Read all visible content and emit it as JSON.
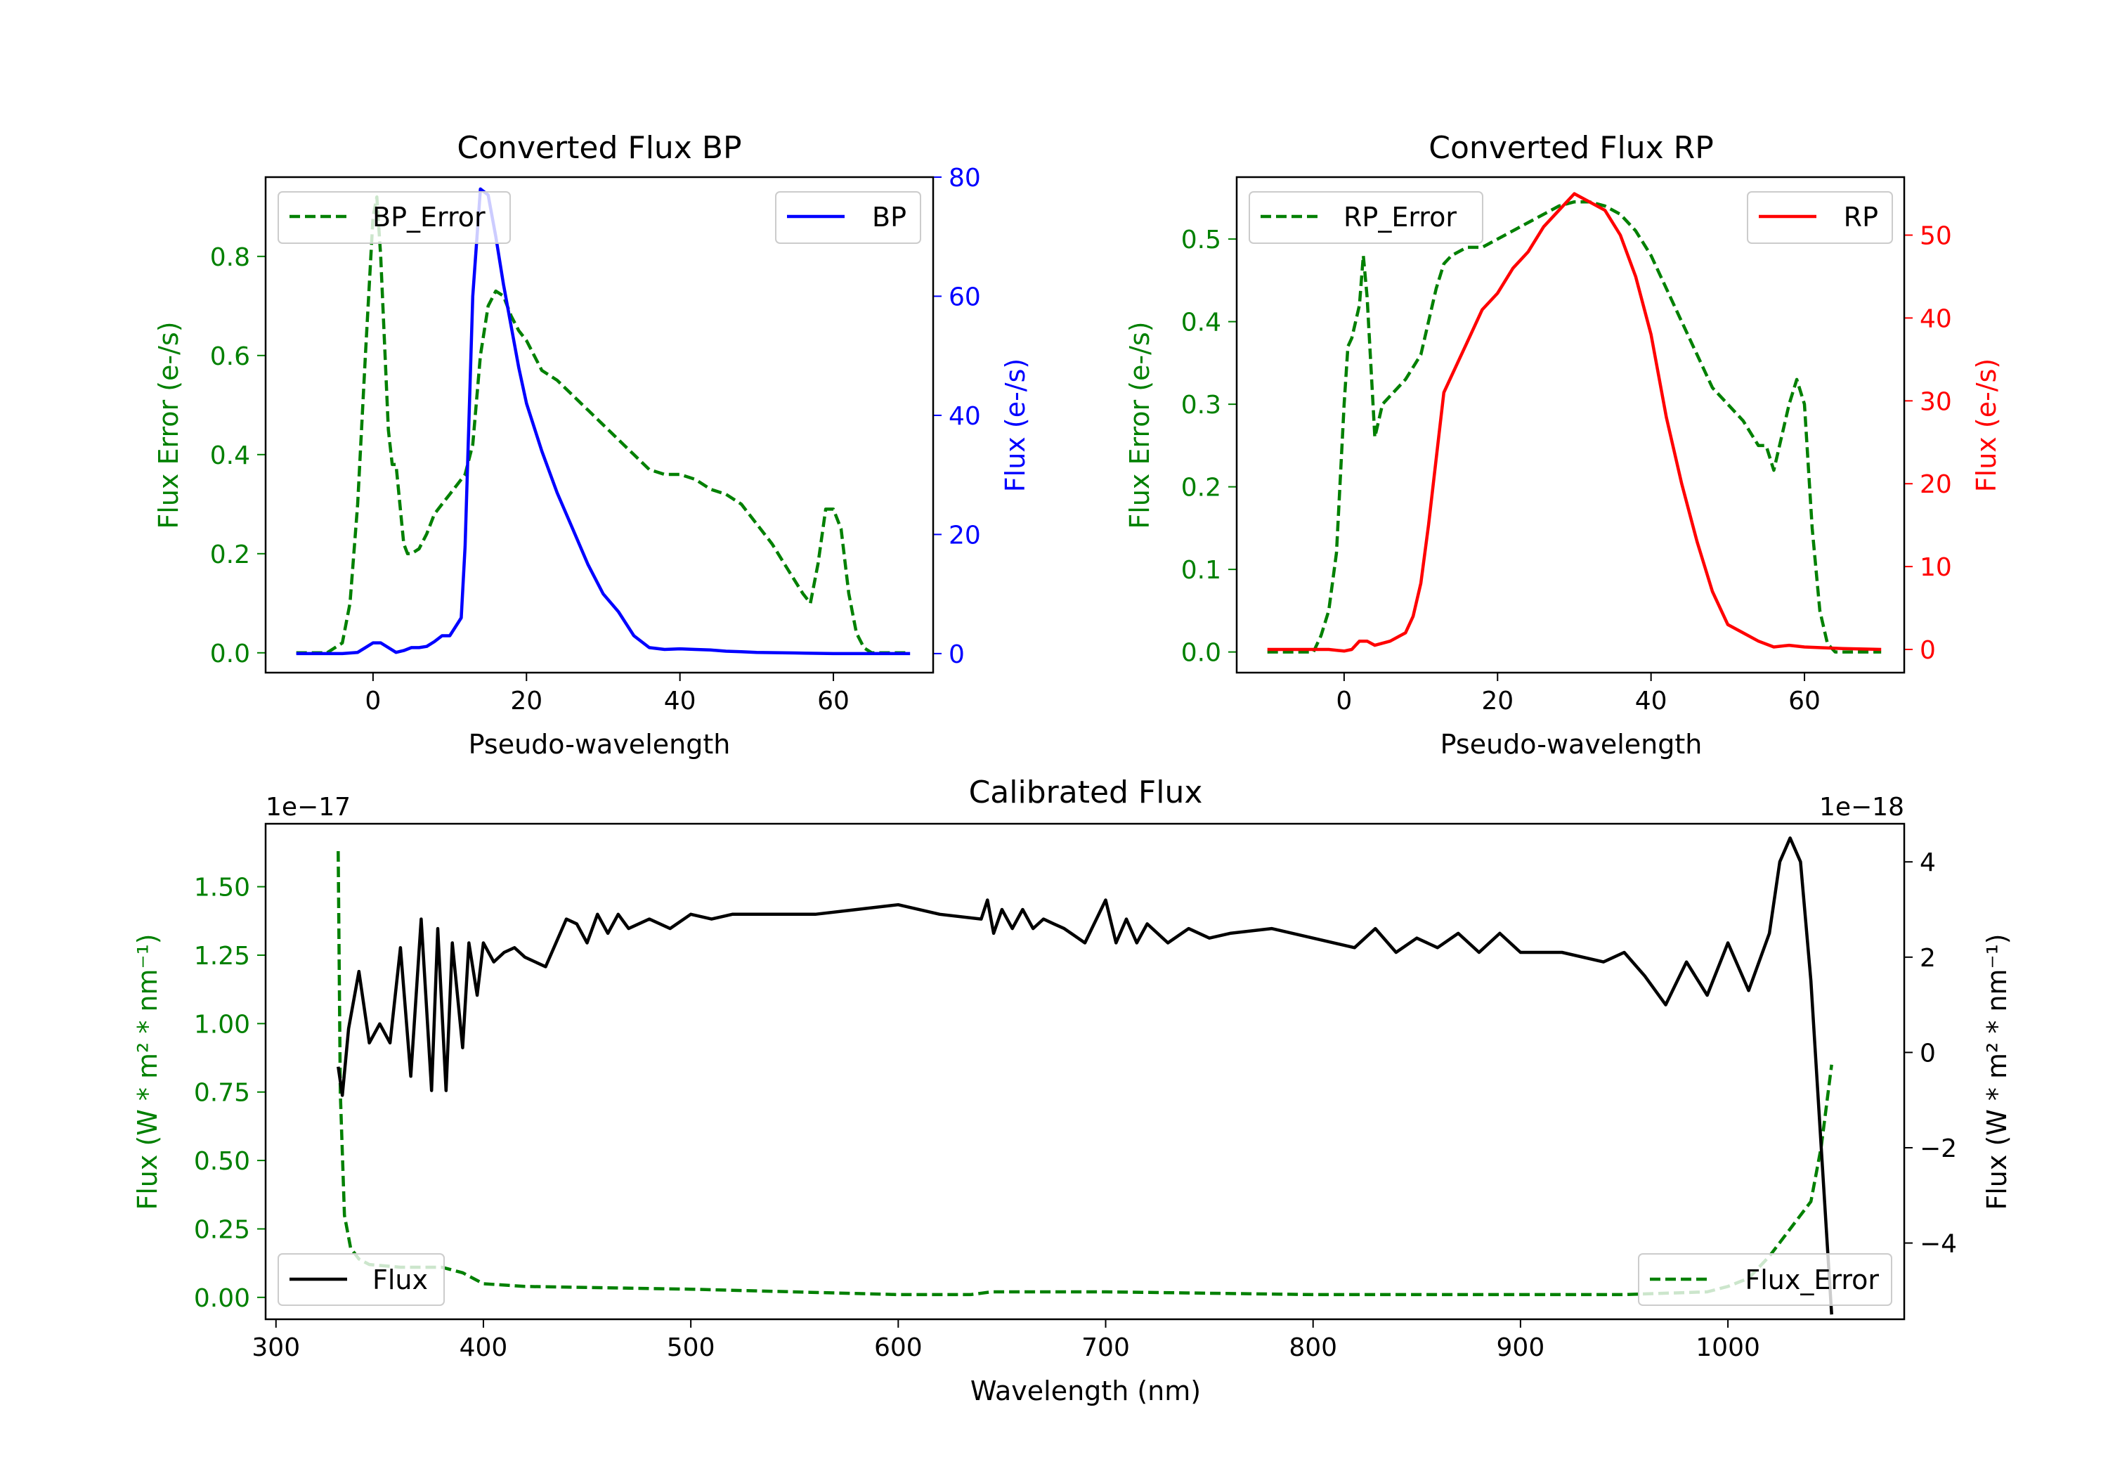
{
  "chart_data": [
    {
      "type": "line",
      "title": "Converted Flux BP",
      "xlabel": "Pseudo-wavelength",
      "ylabel_left": "Flux Error (e-/s)",
      "ylabel_right": "Flux (e-/s)",
      "xlim": [
        -14,
        73
      ],
      "ylim_left": [
        -0.04,
        0.96
      ],
      "ylim_right": [
        -3.2,
        80
      ],
      "xticks": [
        0,
        20,
        40,
        60
      ],
      "yticks_left": [
        0.0,
        0.2,
        0.4,
        0.6,
        0.8
      ],
      "yticks_right": [
        0,
        20,
        40,
        60,
        80
      ],
      "left_color": "#008000",
      "right_color": "#0000ff",
      "series": [
        {
          "name": "BP_Error",
          "axis": "left",
          "style": "dashed",
          "color": "#008000",
          "x": [
            -10,
            -6,
            -4,
            -3,
            -2,
            -1,
            0,
            0.5,
            1,
            2,
            2.5,
            3,
            4,
            4.5,
            5,
            6,
            7,
            8,
            9,
            10,
            11,
            12,
            13,
            14,
            15,
            16,
            17,
            18,
            19,
            20,
            21,
            22,
            24,
            26,
            28,
            30,
            32,
            34,
            36,
            38,
            40,
            42,
            44,
            46,
            48,
            50,
            52,
            54,
            56,
            57,
            58,
            59,
            60,
            61,
            62,
            63,
            64,
            65,
            66,
            68,
            70
          ],
          "values": [
            0,
            0,
            0.02,
            0.1,
            0.3,
            0.6,
            0.88,
            0.92,
            0.8,
            0.45,
            0.38,
            0.38,
            0.22,
            0.2,
            0.2,
            0.21,
            0.24,
            0.28,
            0.3,
            0.32,
            0.34,
            0.36,
            0.42,
            0.6,
            0.7,
            0.73,
            0.72,
            0.68,
            0.65,
            0.63,
            0.6,
            0.57,
            0.55,
            0.52,
            0.49,
            0.46,
            0.43,
            0.4,
            0.37,
            0.36,
            0.36,
            0.35,
            0.33,
            0.32,
            0.3,
            0.26,
            0.22,
            0.17,
            0.12,
            0.1,
            0.18,
            0.29,
            0.29,
            0.25,
            0.12,
            0.04,
            0.01,
            0,
            0,
            0,
            0
          ]
        },
        {
          "name": "BP",
          "axis": "right",
          "style": "solid",
          "color": "#0000ff",
          "x": [
            -10,
            -6,
            -4,
            -2,
            -1,
            0,
            1,
            2,
            3,
            4,
            5,
            6,
            7,
            8,
            9,
            10,
            11,
            11.5,
            12,
            13,
            14,
            15,
            16,
            17,
            18,
            19,
            20,
            22,
            24,
            26,
            28,
            30,
            32,
            34,
            36,
            38,
            40,
            42,
            44,
            46,
            48,
            50,
            55,
            60,
            65,
            70
          ],
          "values": [
            0,
            0,
            0,
            0.2,
            1,
            1.8,
            1.8,
            1,
            0.2,
            0.5,
            1,
            1,
            1.2,
            2,
            3,
            3,
            5,
            6,
            18,
            60,
            78,
            77,
            70,
            62,
            55,
            48,
            42,
            34,
            27,
            21,
            15,
            10,
            7,
            3,
            1,
            0.7,
            0.8,
            0.7,
            0.6,
            0.4,
            0.3,
            0.2,
            0.1,
            0,
            0,
            0
          ]
        }
      ],
      "legend": [
        {
          "label": "BP_Error",
          "placement": "upper-left"
        },
        {
          "label": "BP",
          "placement": "upper-right"
        }
      ]
    },
    {
      "type": "line",
      "title": "Converted Flux RP",
      "xlabel": "Pseudo-wavelength",
      "ylabel_left": "Flux Error (e-/s)",
      "ylabel_right": "Flux (e-/s)",
      "xlim": [
        -14,
        73
      ],
      "ylim_left": [
        -0.025,
        0.575
      ],
      "ylim_right": [
        -2.8,
        57
      ],
      "xticks": [
        0,
        20,
        40,
        60
      ],
      "yticks_left": [
        0.0,
        0.1,
        0.2,
        0.3,
        0.4,
        0.5
      ],
      "yticks_right": [
        0,
        10,
        20,
        30,
        40,
        50
      ],
      "left_color": "#008000",
      "right_color": "#ff0000",
      "series": [
        {
          "name": "RP_Error",
          "axis": "left",
          "style": "dashed",
          "color": "#008000",
          "x": [
            -10,
            -6,
            -4,
            -3,
            -2,
            -1,
            0,
            0.5,
            1,
            2,
            2.5,
            3,
            4,
            5,
            6,
            8,
            10,
            11,
            12,
            13,
            14,
            16,
            18,
            20,
            22,
            24,
            26,
            28,
            30,
            32,
            34,
            36,
            38,
            40,
            42,
            44,
            46,
            48,
            50,
            52,
            54,
            55,
            56,
            57,
            58,
            59,
            60,
            61,
            62,
            63,
            64,
            66,
            70
          ],
          "values": [
            0,
            0,
            0,
            0.02,
            0.05,
            0.12,
            0.3,
            0.37,
            0.38,
            0.42,
            0.48,
            0.43,
            0.26,
            0.3,
            0.31,
            0.33,
            0.36,
            0.4,
            0.44,
            0.47,
            0.48,
            0.49,
            0.49,
            0.5,
            0.51,
            0.52,
            0.53,
            0.54,
            0.545,
            0.545,
            0.54,
            0.53,
            0.51,
            0.48,
            0.44,
            0.4,
            0.36,
            0.32,
            0.3,
            0.28,
            0.25,
            0.25,
            0.22,
            0.26,
            0.3,
            0.33,
            0.3,
            0.15,
            0.05,
            0.01,
            0,
            0,
            0
          ]
        },
        {
          "name": "RP",
          "axis": "right",
          "style": "solid",
          "color": "#ff0000",
          "x": [
            -10,
            -4,
            -2,
            0,
            1,
            2,
            3,
            4,
            6,
            8,
            9,
            10,
            11,
            12,
            13,
            14,
            16,
            18,
            20,
            22,
            24,
            26,
            28,
            30,
            32,
            34,
            36,
            38,
            40,
            42,
            44,
            46,
            48,
            50,
            52,
            54,
            56,
            58,
            60,
            65,
            70
          ],
          "values": [
            0,
            0,
            0,
            -0.2,
            0,
            1,
            1,
            0.5,
            1,
            2,
            4,
            8,
            15,
            23,
            31,
            33,
            37,
            41,
            43,
            46,
            48,
            51,
            53,
            55,
            54,
            53,
            50,
            45,
            38,
            28,
            20,
            13,
            7,
            3,
            2,
            1,
            0.3,
            0.5,
            0.3,
            0.1,
            0
          ]
        }
      ],
      "legend": [
        {
          "label": "RP_Error",
          "placement": "upper-left"
        },
        {
          "label": "RP",
          "placement": "upper-right"
        }
      ]
    },
    {
      "type": "line",
      "title": "Calibrated Flux",
      "xlabel": "Wavelength (nm)",
      "ylabel_left": "Flux (W * m² * nm⁻¹)",
      "ylabel_right": "Flux (W * m² * nm⁻¹)",
      "offset_left": "1e−17",
      "offset_right": "1e−18",
      "xlim": [
        295,
        1085
      ],
      "ylim_left": [
        -0.08,
        1.73
      ],
      "ylim_right": [
        -5.6,
        4.8
      ],
      "xticks": [
        300,
        400,
        500,
        600,
        700,
        800,
        900,
        1000
      ],
      "yticks_left": [
        0.0,
        0.25,
        0.5,
        0.75,
        1.0,
        1.25,
        1.5
      ],
      "yticks_right": [
        -4,
        -2,
        0,
        2,
        4
      ],
      "left_color": "#008000",
      "right_color": "#000000",
      "series": [
        {
          "name": "Flux_Error",
          "axis": "left",
          "style": "dashed",
          "color": "#008000",
          "x": [
            330,
            331,
            333,
            336,
            340,
            345,
            360,
            380,
            390,
            400,
            420,
            500,
            600,
            635,
            645,
            700,
            800,
            900,
            950,
            990,
            1000,
            1010,
            1020,
            1030,
            1040,
            1045,
            1050
          ],
          "values": [
            1.63,
            0.75,
            0.3,
            0.18,
            0.14,
            0.12,
            0.11,
            0.11,
            0.09,
            0.05,
            0.04,
            0.03,
            0.01,
            0.01,
            0.02,
            0.02,
            0.01,
            0.01,
            0.01,
            0.02,
            0.04,
            0.07,
            0.15,
            0.25,
            0.35,
            0.55,
            0.85
          ]
        },
        {
          "name": "Flux",
          "axis": "right",
          "style": "solid",
          "color": "#000000",
          "x": [
            330,
            332,
            335,
            340,
            345,
            350,
            355,
            360,
            365,
            370,
            375,
            378,
            382,
            385,
            390,
            393,
            397,
            400,
            405,
            410,
            415,
            420,
            430,
            440,
            445,
            450,
            455,
            460,
            465,
            470,
            480,
            490,
            500,
            510,
            520,
            540,
            560,
            580,
            600,
            620,
            640,
            643,
            646,
            650,
            655,
            660,
            665,
            670,
            675,
            680,
            690,
            700,
            705,
            710,
            715,
            720,
            730,
            740,
            750,
            760,
            780,
            800,
            820,
            830,
            840,
            850,
            860,
            870,
            880,
            890,
            900,
            920,
            940,
            950,
            960,
            970,
            980,
            990,
            1000,
            1010,
            1020,
            1025,
            1030,
            1035,
            1040,
            1045,
            1050
          ],
          "values": [
            -0.3,
            -0.9,
            0.5,
            1.7,
            0.2,
            0.6,
            0.2,
            2.2,
            -0.5,
            2.8,
            -0.8,
            2.6,
            -0.8,
            2.3,
            0.1,
            2.3,
            1.2,
            2.3,
            1.9,
            2.1,
            2.2,
            2.0,
            1.8,
            2.8,
            2.7,
            2.3,
            2.9,
            2.5,
            2.9,
            2.6,
            2.8,
            2.6,
            2.9,
            2.8,
            2.9,
            2.9,
            2.9,
            3.0,
            3.1,
            2.9,
            2.8,
            3.2,
            2.5,
            3.0,
            2.6,
            3.0,
            2.6,
            2.8,
            2.7,
            2.6,
            2.3,
            3.2,
            2.3,
            2.8,
            2.3,
            2.7,
            2.3,
            2.6,
            2.4,
            2.5,
            2.6,
            2.4,
            2.2,
            2.6,
            2.1,
            2.4,
            2.2,
            2.5,
            2.1,
            2.5,
            2.1,
            2.1,
            1.9,
            2.1,
            1.6,
            1.0,
            1.9,
            1.2,
            2.3,
            1.3,
            2.5,
            4.0,
            4.5,
            4.0,
            1.5,
            -2.0,
            -5.5
          ]
        }
      ],
      "legend": [
        {
          "label": "Flux",
          "placement": "lower-left"
        },
        {
          "label": "Flux_Error",
          "placement": "lower-right"
        }
      ]
    }
  ]
}
